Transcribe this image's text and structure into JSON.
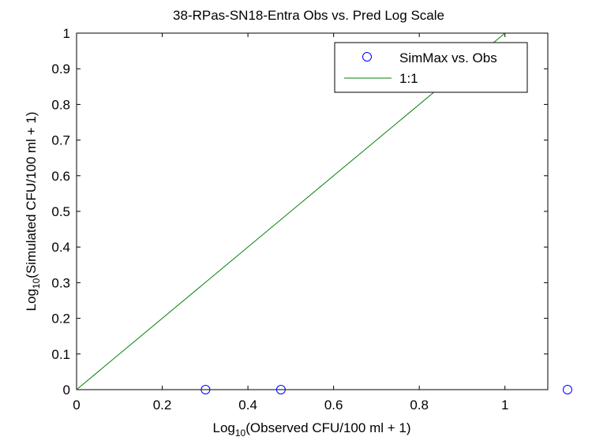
{
  "chart_data": {
    "type": "scatter",
    "title": "38-RPas-SN18-Entra Obs vs. Pred Log Scale",
    "xlabel_prefix": "Log",
    "xlabel_sub": "10",
    "xlabel_rest": "(Observed CFU/100 ml + 1)",
    "ylabel_prefix": "Log",
    "ylabel_sub": "10",
    "ylabel_rest": "(Simulated CFU/100 ml + 1)",
    "xlim": [
      0,
      1.1
    ],
    "ylim": [
      0,
      1
    ],
    "xticks": [
      "0",
      "0.2",
      "0.4",
      "0.6",
      "0.8",
      "1"
    ],
    "yticks": [
      "0",
      "0.1",
      "0.2",
      "0.3",
      "0.4",
      "0.5",
      "0.6",
      "0.7",
      "0.8",
      "0.9",
      "1"
    ],
    "grid": false,
    "legend_position": "top-right",
    "series": [
      {
        "name": "SimMax vs. Obs",
        "kind": "scatter",
        "marker": "circle",
        "color": "#0000ff",
        "x": [
          0.301,
          0.477,
          1.146
        ],
        "y": [
          0,
          0,
          0
        ]
      },
      {
        "name": "1:1",
        "kind": "line",
        "color": "#008000",
        "x": [
          0,
          1
        ],
        "y": [
          0,
          1
        ]
      }
    ]
  }
}
